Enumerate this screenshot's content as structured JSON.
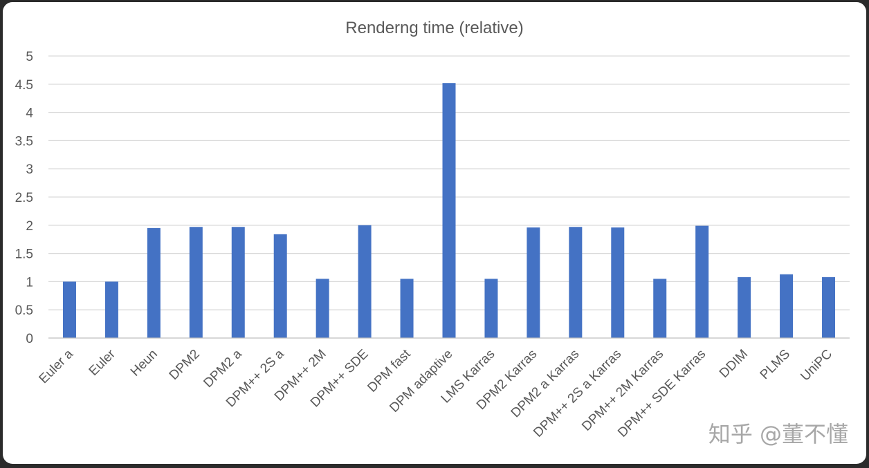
{
  "chart_data": {
    "type": "bar",
    "title": "Renderng time (relative)",
    "xlabel": "",
    "ylabel": "",
    "ylim": [
      0,
      5
    ],
    "yticks": [
      "0",
      "0.5",
      "1",
      "1.5",
      "2",
      "2.5",
      "3",
      "3.5",
      "4",
      "4.5",
      "5"
    ],
    "grid": true,
    "legend": "none",
    "bar_color": "#4472c4",
    "categories": [
      "Euler a",
      "Euler",
      "Heun",
      "DPM2",
      "DPM2 a",
      "DPM++ 2S a",
      "DPM++ 2M",
      "DPM++ SDE",
      "DPM fast",
      "DPM adaptive",
      "LMS Karras",
      "DPM2 Karras",
      "DPM2 a Karras",
      "DPM++ 2S a Karras",
      "DPM++ 2M Karras",
      "DPM++ SDE Karras",
      "DDIM",
      "PLMS",
      "UniPC"
    ],
    "values": [
      1.0,
      1.0,
      1.95,
      1.97,
      1.97,
      1.84,
      1.05,
      2.0,
      1.05,
      4.52,
      1.05,
      1.96,
      1.97,
      1.96,
      1.05,
      1.99,
      1.08,
      1.13,
      1.08
    ]
  },
  "watermark": {
    "text": "知乎 @董不懂"
  }
}
